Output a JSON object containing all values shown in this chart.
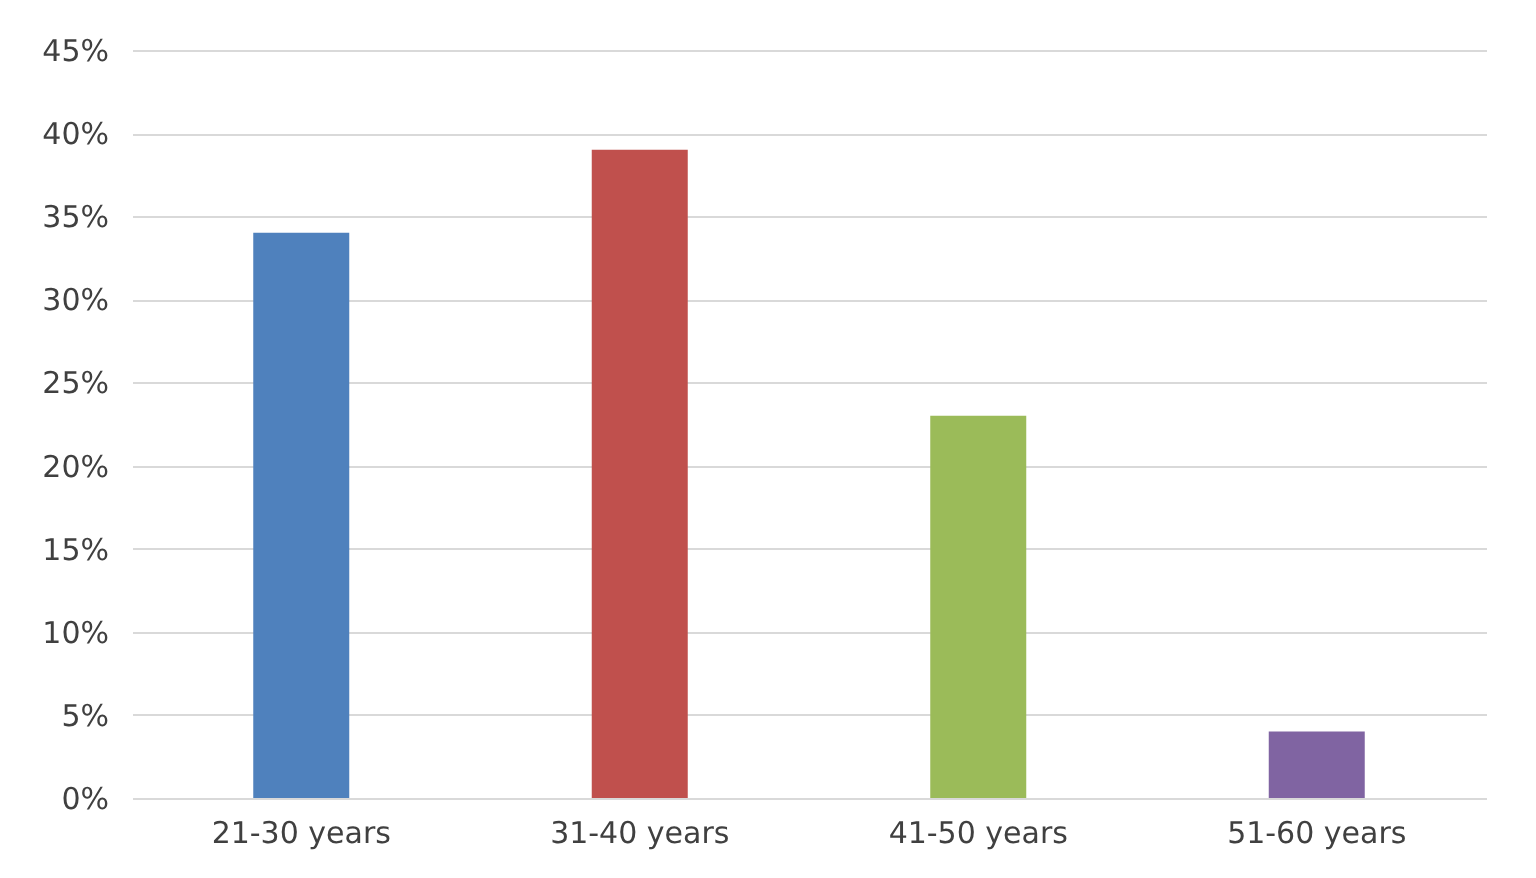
{
  "chart_data": {
    "type": "bar",
    "categories": [
      "21-30 years",
      "31-40 years",
      "41-50 years",
      "51-60 years"
    ],
    "values": [
      34,
      39,
      23,
      4
    ],
    "colors": [
      "#4f81bd",
      "#c0504d",
      "#9bbb59",
      "#8064a2"
    ],
    "ylim": [
      0,
      45
    ],
    "yticks": [
      {
        "value": 0,
        "label": "0%"
      },
      {
        "value": 5,
        "label": "5%"
      },
      {
        "value": 10,
        "label": "10%"
      },
      {
        "value": 15,
        "label": "15%"
      },
      {
        "value": 20,
        "label": "20%"
      },
      {
        "value": 25,
        "label": "25%"
      },
      {
        "value": 30,
        "label": "30%"
      },
      {
        "value": 35,
        "label": "35%"
      },
      {
        "value": 40,
        "label": "40%"
      },
      {
        "value": 45,
        "label": "45%"
      }
    ],
    "grid": "y"
  }
}
